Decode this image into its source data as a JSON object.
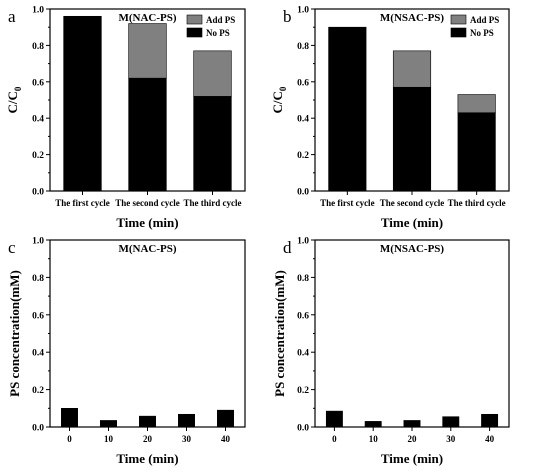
{
  "colors": {
    "no_ps": "#000000",
    "add_ps": "#808080",
    "axis": "#000000"
  },
  "chart_data": [
    {
      "panel": "a",
      "type": "bar",
      "stacked": true,
      "title": "M(NAC-PS)",
      "categories": [
        "The first cycle",
        "The second cycle",
        "The third cycle"
      ],
      "series": [
        {
          "name": "No PS",
          "values": [
            0.96,
            0.62,
            0.52
          ]
        },
        {
          "name": "Add PS",
          "values": [
            0.0,
            0.3,
            0.25
          ]
        }
      ],
      "xlabel": "Time (min)",
      "ylabel": "C/C0",
      "ylabel_main": "C/C",
      "ylabel_sub": "0",
      "ylim": [
        0,
        1.0
      ],
      "yticks": [
        "0.0",
        "0.2",
        "0.4",
        "0.6",
        "0.8",
        "1.0"
      ],
      "legend": "top-right"
    },
    {
      "panel": "b",
      "type": "bar",
      "stacked": true,
      "title": "M(NSAC-PS)",
      "categories": [
        "The first cycle",
        "The second cycle",
        "The third cycle"
      ],
      "series": [
        {
          "name": "No PS",
          "values": [
            0.9,
            0.57,
            0.43
          ]
        },
        {
          "name": "Add PS",
          "values": [
            0.0,
            0.2,
            0.1
          ]
        }
      ],
      "xlabel": "Time (min)",
      "ylabel": "C/C0",
      "ylabel_main": "C/C",
      "ylabel_sub": "0",
      "ylim": [
        0,
        1.0
      ],
      "yticks": [
        "0.0",
        "0.2",
        "0.4",
        "0.6",
        "0.8",
        "1.0"
      ],
      "legend": "top-right"
    },
    {
      "panel": "c",
      "type": "bar",
      "title": "M(NAC-PS)",
      "categories": [
        "0",
        "10",
        "20",
        "30",
        "40"
      ],
      "series": [
        {
          "values": [
            0.1,
            0.035,
            0.058,
            0.068,
            0.09
          ]
        }
      ],
      "xlabel": "Time (min)",
      "ylabel": "PS concentration(mM)",
      "ylim": [
        0,
        1.0
      ],
      "yticks": [
        "0.0",
        "0.2",
        "0.4",
        "0.6",
        "0.8",
        "1.0"
      ]
    },
    {
      "panel": "d",
      "type": "bar",
      "title": "M(NSAC-PS)",
      "categories": [
        "0",
        "10",
        "20",
        "30",
        "40"
      ],
      "series": [
        {
          "values": [
            0.085,
            0.03,
            0.035,
            0.055,
            0.068
          ]
        }
      ],
      "xlabel": "Time (min)",
      "ylabel": "PS concentration(mM)",
      "ylim": [
        0,
        1.0
      ],
      "yticks": [
        "0.0",
        "0.2",
        "0.4",
        "0.6",
        "0.8",
        "1.0"
      ]
    }
  ]
}
